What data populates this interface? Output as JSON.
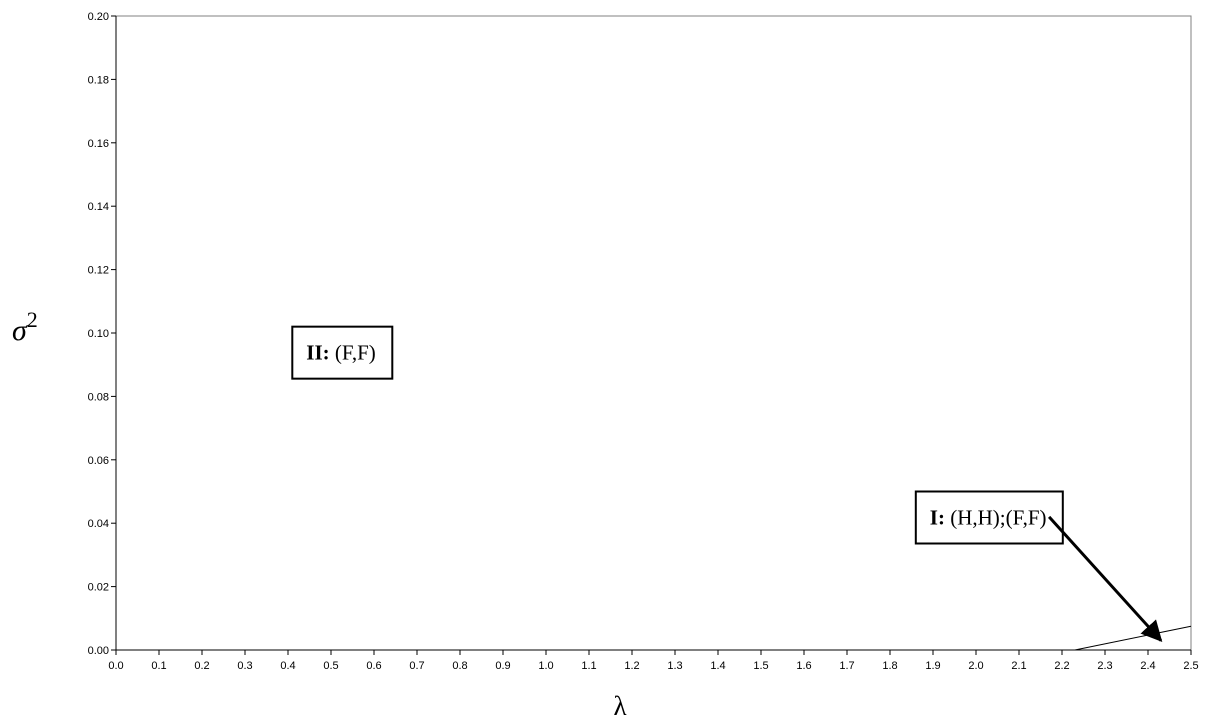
{
  "chart_data": {
    "type": "line",
    "xlabel": "λ",
    "ylabel_base": "σ",
    "ylabel_sup": "2",
    "xlim": [
      0.0,
      2.5
    ],
    "ylim": [
      0.0,
      0.2
    ],
    "x_ticks": [
      "0.0",
      "0.1",
      "0.2",
      "0.3",
      "0.4",
      "0.5",
      "0.6",
      "0.7",
      "0.8",
      "0.9",
      "1.0",
      "1.1",
      "1.2",
      "1.3",
      "1.4",
      "1.5",
      "1.6",
      "1.7",
      "1.8",
      "1.9",
      "2.0",
      "2.1",
      "2.2",
      "2.3",
      "2.4",
      "2.5"
    ],
    "y_ticks": [
      "0.00",
      "0.02",
      "0.04",
      "0.06",
      "0.08",
      "0.10",
      "0.12",
      "0.14",
      "0.16",
      "0.18",
      "0.20"
    ],
    "grid": false,
    "series": [
      {
        "x": [
          2.23,
          2.5
        ],
        "y": [
          0.0,
          0.0075
        ]
      }
    ],
    "annotations": [
      {
        "bold": "II:",
        "text": " (F,F)",
        "x": 0.41,
        "y": 0.102
      },
      {
        "bold": "I:",
        "text": " (H,H);(F,F)",
        "x": 1.86,
        "y": 0.05,
        "arrow_from": [
          2.17,
          0.042
        ],
        "arrow_to": [
          2.43,
          0.003
        ]
      }
    ]
  }
}
